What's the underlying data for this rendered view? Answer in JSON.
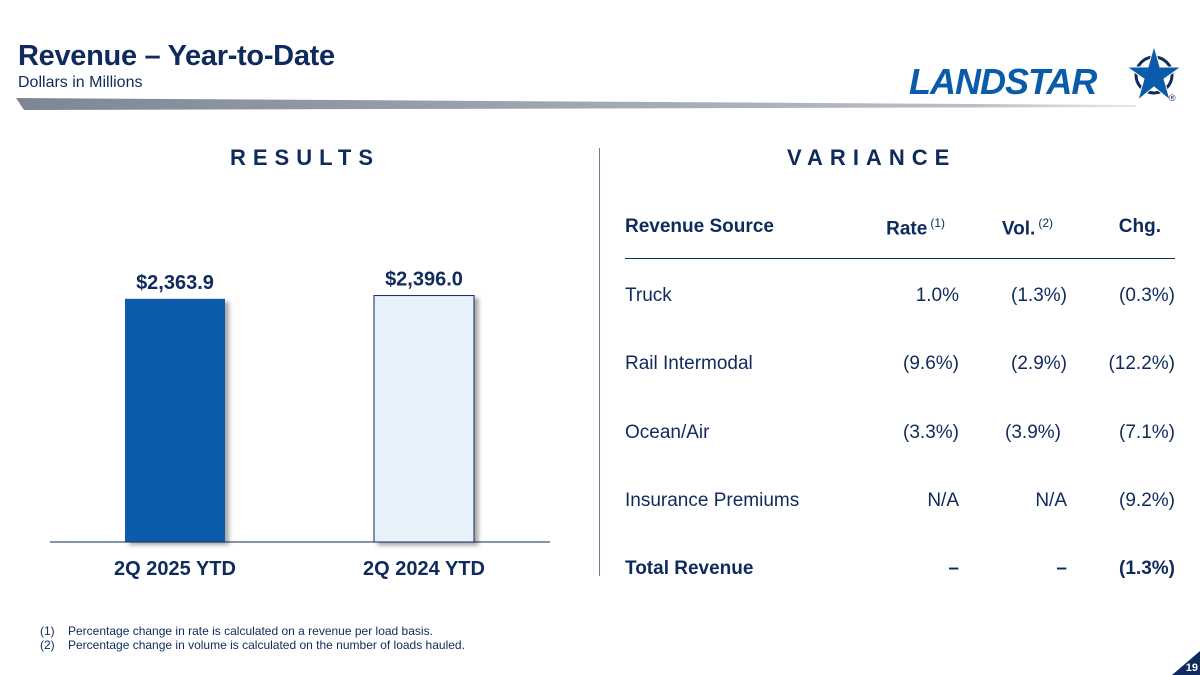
{
  "header": {
    "title": "Revenue – Year-to-Date",
    "subtitle": "Dollars in Millions",
    "logo_text": "LANDSTAR",
    "logo_mark": "®"
  },
  "results": {
    "heading": "RESULTS"
  },
  "variance": {
    "heading": "VARIANCE",
    "columns": {
      "source": "Revenue Source",
      "rate": "Rate",
      "rate_note": "(1)",
      "vol": "Vol.",
      "vol_note": "(2)",
      "chg": "Chg."
    },
    "rows": [
      {
        "source": "Truck",
        "rate": "1.0%",
        "vol": "(1.3%)",
        "chg": "(0.3%)"
      },
      {
        "source": "Rail Intermodal",
        "rate": "(9.6%)",
        "vol": "(2.9%)",
        "chg": "(12.2%)"
      },
      {
        "source": "Ocean/Air",
        "rate": "(3.3%)",
        "vol": "(3.9%)",
        "chg": "(7.1%)"
      },
      {
        "source": "Insurance Premiums",
        "rate": "N/A",
        "vol": "N/A",
        "chg": "(9.2%)"
      },
      {
        "source": "Total Revenue",
        "rate": "–",
        "vol": "–",
        "chg": "(1.3%)"
      }
    ]
  },
  "footnotes": [
    {
      "num": "(1)",
      "text": "Percentage change in rate is calculated on a revenue per load basis."
    },
    {
      "num": "(2)",
      "text": "Percentage change in volume is calculated on the number of loads hauled."
    }
  ],
  "page_number": "19",
  "colors": {
    "navy": "#0f2a5c",
    "bar_primary": "#0a5cab",
    "bar_secondary_fill": "#e8f2fb",
    "bar_secondary_stroke": "#0f2a5c"
  },
  "chart_data": {
    "type": "bar",
    "title": "RESULTS",
    "categories": [
      "2Q 2025 YTD",
      "2Q 2024 YTD"
    ],
    "values": [
      2363.9,
      2396.0
    ],
    "data_labels": [
      "$2,363.9",
      "$2,396.0"
    ],
    "xlabel": "",
    "ylabel": "Dollars in Millions",
    "ylim": [
      0,
      2450
    ],
    "grid": false,
    "legend": "none"
  }
}
